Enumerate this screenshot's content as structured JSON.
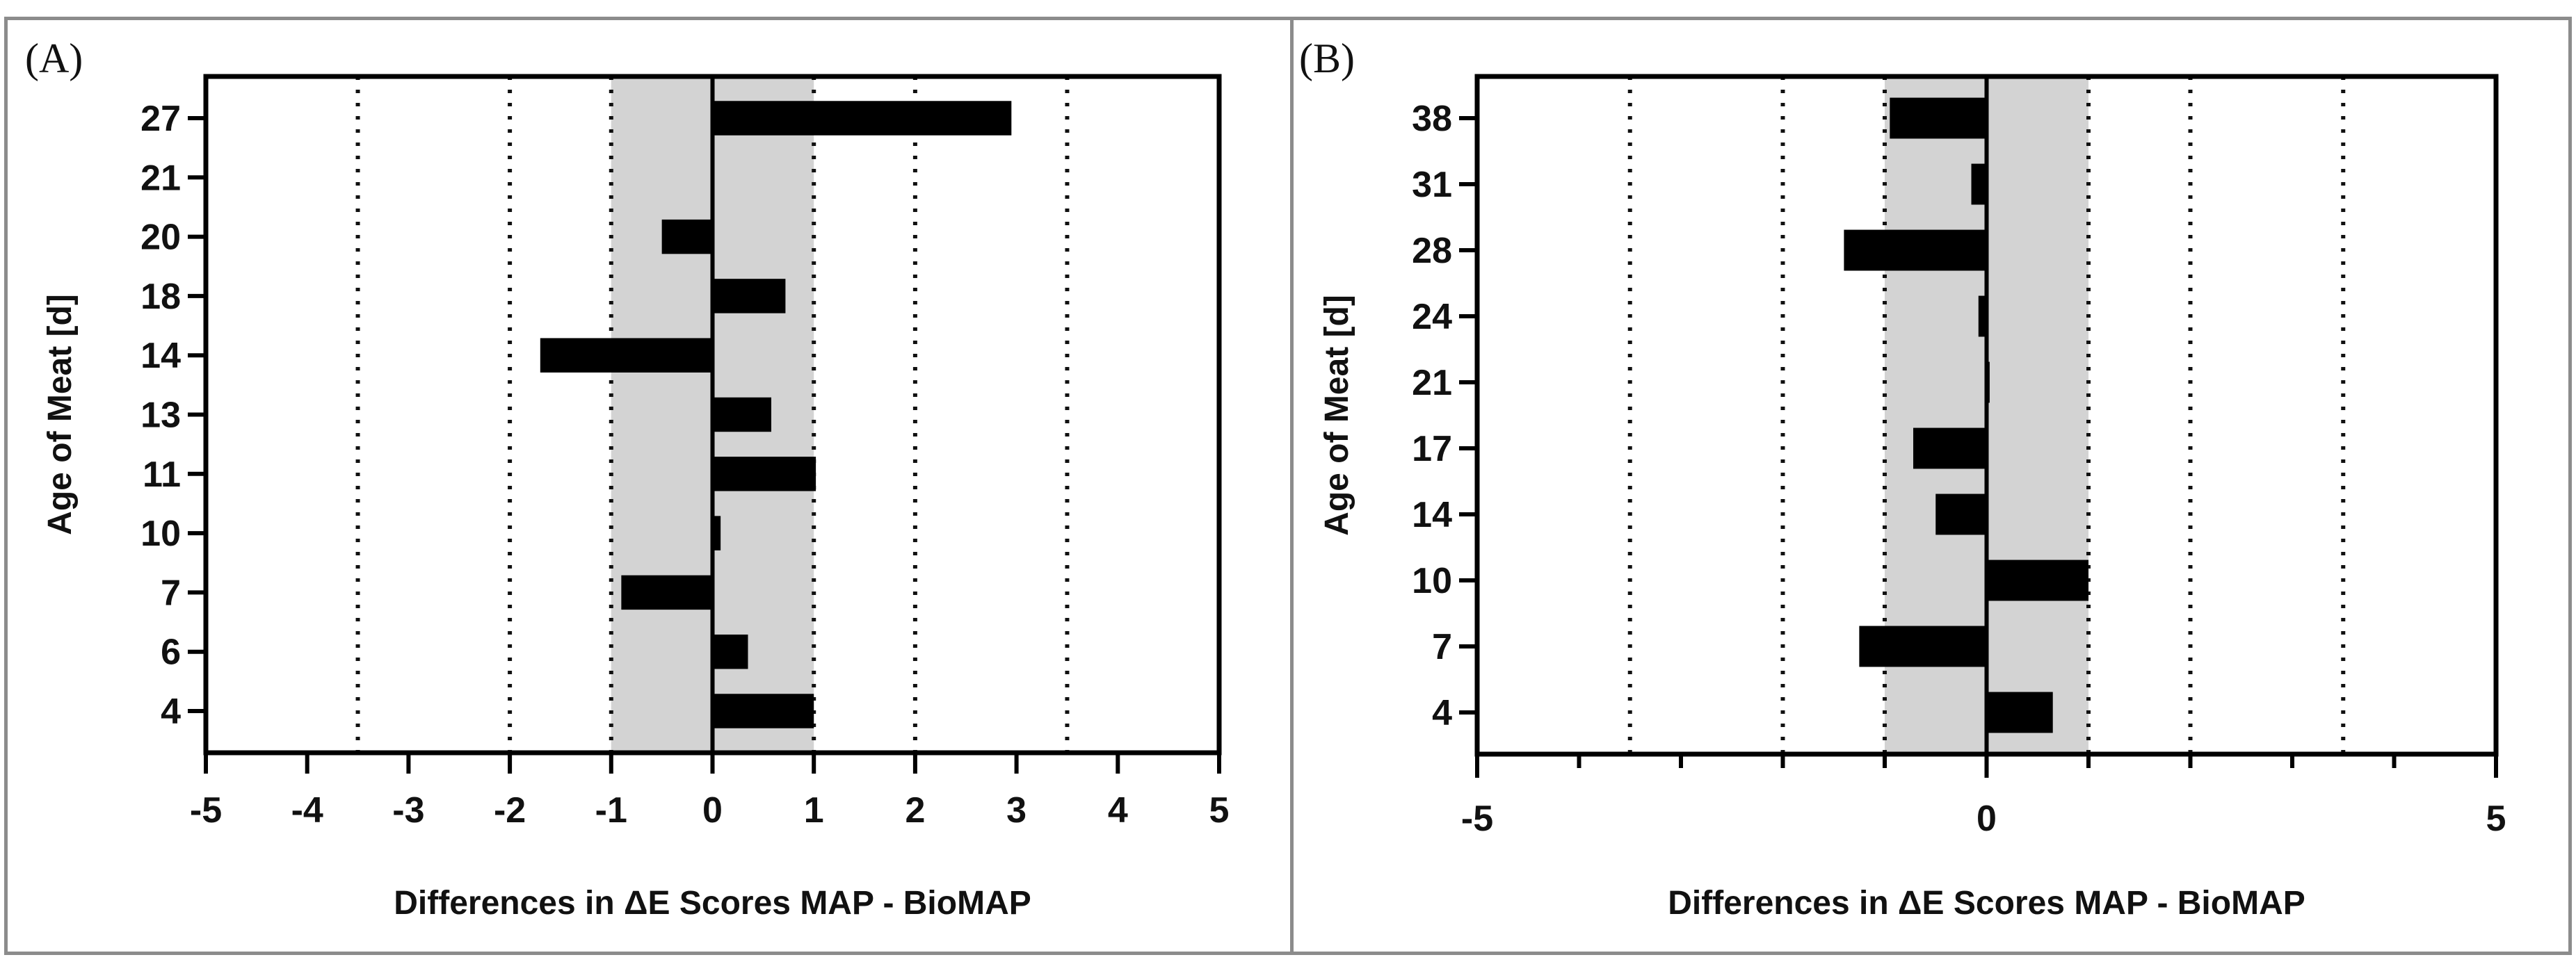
{
  "chart_data": [
    {
      "type": "bar",
      "orientation": "horizontal",
      "panel_label": "(A)",
      "categories": [
        "4",
        "6",
        "7",
        "10",
        "11",
        "13",
        "14",
        "18",
        "20",
        "21",
        "27"
      ],
      "values": [
        1.0,
        0.35,
        -0.9,
        0.08,
        1.02,
        0.58,
        -1.7,
        0.72,
        -0.5,
        0.0,
        2.95
      ],
      "xlabel": "Differences in ΔE Scores MAP - BioMAP",
      "ylabel": "Age of Meat [d]",
      "xlim": [
        -5,
        5
      ],
      "xticks": [
        "-5",
        "-4",
        "-3",
        "-2",
        "-1",
        "0",
        "1",
        "2",
        "3",
        "4",
        "5"
      ],
      "shaded_band": [
        -1,
        1
      ],
      "reference_lines": [
        -3.5,
        -2,
        2,
        3.5
      ],
      "bar_color": "#000000",
      "band_color": "#d3d3d3"
    },
    {
      "type": "bar",
      "orientation": "horizontal",
      "panel_label": "(B)",
      "categories": [
        "4",
        "7",
        "10",
        "14",
        "17",
        "21",
        "24",
        "28",
        "31",
        "38"
      ],
      "values": [
        0.65,
        -1.25,
        1.0,
        -0.5,
        -0.72,
        0.03,
        -0.08,
        -1.4,
        -0.15,
        -0.95
      ],
      "xlabel": "Differences in ΔE Scores MAP - BioMAP",
      "ylabel": "Age of Meat [d]",
      "xlim": [
        -5,
        5
      ],
      "xticks": [
        "-5",
        "0",
        "5"
      ],
      "shaded_band": [
        -1,
        1
      ],
      "reference_lines": [
        -3.5,
        -2,
        2,
        3.5
      ],
      "bar_color": "#000000",
      "band_color": "#d3d3d3"
    }
  ]
}
